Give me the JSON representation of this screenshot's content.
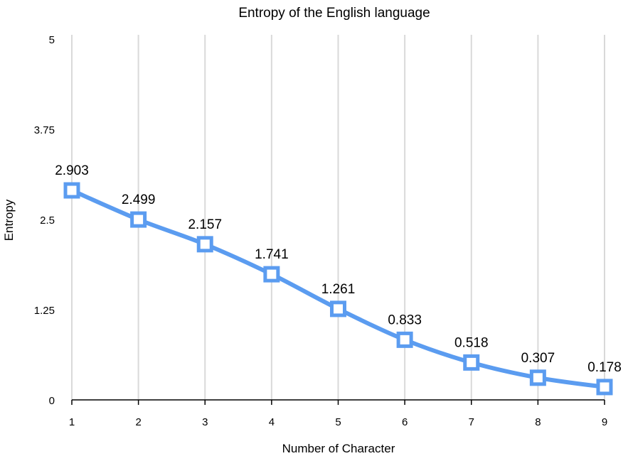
{
  "chart_data": {
    "type": "line",
    "title": "Entropy of the English language",
    "xlabel": "Number of Character",
    "ylabel": "Entropy",
    "x": [
      1,
      2,
      3,
      4,
      5,
      6,
      7,
      8,
      9
    ],
    "xticks": [
      "1",
      "2",
      "3",
      "4",
      "5",
      "6",
      "7",
      "8",
      "9"
    ],
    "yticks": [
      "0",
      "1.25",
      "2.5",
      "3.75",
      "5"
    ],
    "ylim": [
      0,
      5
    ],
    "grid": "vertical",
    "series": [
      {
        "values": [
          2.903,
          2.499,
          2.157,
          1.741,
          1.261,
          0.833,
          0.518,
          0.307,
          0.178
        ],
        "labels": [
          "2.903",
          "2.499",
          "2.157",
          "1.741",
          "1.261",
          "0.833",
          "0.518",
          "0.307",
          "0.178"
        ],
        "color": "#5b9cf0",
        "marker": "square"
      }
    ],
    "colors": {
      "grid": "#d9d9d9",
      "axis": "#000000"
    }
  }
}
